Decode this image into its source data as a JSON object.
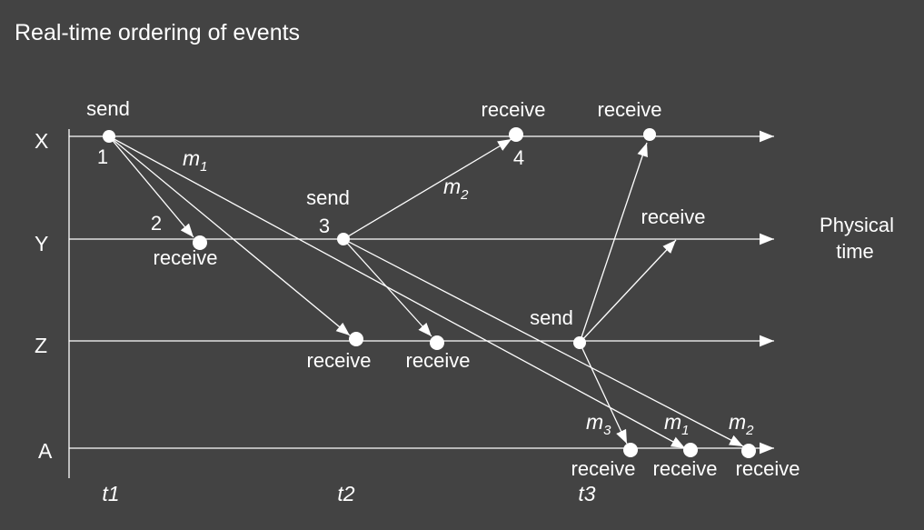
{
  "title": "Real-time ordering of events",
  "processes": [
    {
      "label": "X"
    },
    {
      "label": "Y"
    },
    {
      "label": "Z"
    },
    {
      "label": "A"
    }
  ],
  "physical_time_label": [
    "Physical",
    "time"
  ],
  "time_marks": [
    {
      "label": "t1"
    },
    {
      "label": "t2"
    },
    {
      "label": "t3"
    }
  ],
  "event_labels": {
    "x_send": "send",
    "x_send_num": "1",
    "x_recv_m2": "receive",
    "x_recv_m2_num": "4",
    "x_recv_m3": "receive",
    "y_recv_m1": "receive",
    "y_recv_m1_num": "2",
    "y_send": "send",
    "y_send_num": "3",
    "y_recv_m3": "receive",
    "z_recv_m1": "receive",
    "z_recv_m2": "receive",
    "z_send": "send",
    "a_recv_m3": "receive",
    "a_recv_m1": "receive",
    "a_recv_m2": "receive"
  },
  "messages": {
    "m1_top": {
      "base": "m",
      "sub": "1"
    },
    "m2_top": {
      "base": "m",
      "sub": "2"
    },
    "m3_bottom": {
      "base": "m",
      "sub": "3"
    },
    "m1_bottom": {
      "base": "m",
      "sub": "1"
    },
    "m2_bottom": {
      "base": "m",
      "sub": "2"
    }
  },
  "colors": {
    "background": "#434343",
    "foreground": "#ffffff"
  }
}
